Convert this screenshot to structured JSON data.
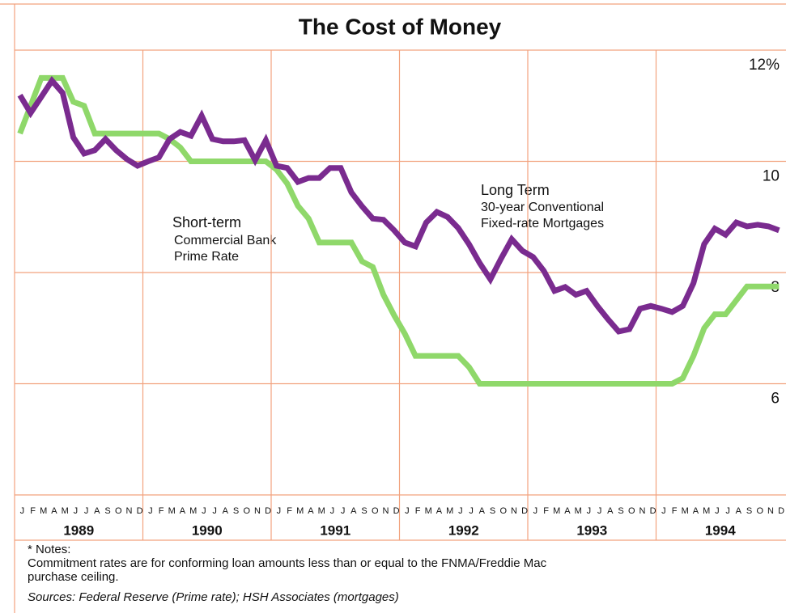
{
  "chart_data": {
    "type": "line",
    "title": "The Cost of Money",
    "categories": [
      "J",
      "F",
      "M",
      "A",
      "M",
      "J",
      "J",
      "A",
      "S",
      "O",
      "N",
      "D",
      "J",
      "F",
      "M",
      "A",
      "M",
      "J",
      "J",
      "A",
      "S",
      "O",
      "N",
      "D",
      "J",
      "F",
      "M",
      "A",
      "M",
      "J",
      "J",
      "A",
      "S",
      "O",
      "N",
      "D",
      "J",
      "F",
      "M",
      "A",
      "M",
      "J",
      "J",
      "A",
      "S",
      "O",
      "N",
      "D",
      "J",
      "F",
      "M",
      "A",
      "M",
      "J",
      "J",
      "A",
      "S",
      "O",
      "N",
      "D",
      "J",
      "F",
      "M",
      "A",
      "M",
      "J",
      "J",
      "A",
      "S",
      "O",
      "N",
      "D"
    ],
    "years": [
      "1989",
      "1990",
      "1991",
      "1992",
      "1993",
      "1994"
    ],
    "ylim": [
      4,
      12
    ],
    "yticks": [
      6,
      8,
      10,
      {
        "value": 12,
        "label": "12%"
      }
    ],
    "grid": true,
    "series": [
      {
        "name": "Long Term",
        "label_lines": [
          "30-year Conventional",
          "Fixed-rate Mortgages"
        ],
        "color": "#7a2b8f",
        "values": [
          11.19,
          10.87,
          11.16,
          11.45,
          11.23,
          10.43,
          10.14,
          10.2,
          10.4,
          10.2,
          10.04,
          9.92,
          10.0,
          10.07,
          10.4,
          10.53,
          10.46,
          10.82,
          10.4,
          10.36,
          10.36,
          10.38,
          10.02,
          10.38,
          9.92,
          9.88,
          9.63,
          9.7,
          9.7,
          9.88,
          9.88,
          9.44,
          9.19,
          8.97,
          8.95,
          8.76,
          8.54,
          8.47,
          8.9,
          9.09,
          9.0,
          8.8,
          8.51,
          8.17,
          7.88,
          8.25,
          8.6,
          8.39,
          8.28,
          8.03,
          7.67,
          7.74,
          7.6,
          7.67,
          7.4,
          7.16,
          6.94,
          6.98,
          7.35,
          7.4,
          7.35,
          7.29,
          7.4,
          7.81,
          8.51,
          8.79,
          8.68,
          8.9,
          8.83,
          8.86,
          8.83,
          8.76
        ]
      },
      {
        "name": "Short-term",
        "label_lines": [
          "Commercial Bank",
          "Prime Rate"
        ],
        "color": "#8fd86a",
        "values": [
          10.5,
          11.0,
          11.5,
          11.5,
          11.5,
          11.07,
          11.0,
          10.5,
          10.5,
          10.5,
          10.5,
          10.5,
          10.5,
          10.5,
          10.4,
          10.25,
          10.0,
          10.0,
          10.0,
          10.0,
          10.0,
          10.0,
          10.0,
          10.0,
          9.85,
          9.6,
          9.2,
          8.97,
          8.54,
          8.54,
          8.54,
          8.54,
          8.2,
          8.1,
          7.6,
          7.23,
          6.9,
          6.5,
          6.5,
          6.5,
          6.5,
          6.5,
          6.3,
          6.0,
          6.0,
          6.0,
          6.0,
          6.0,
          6.0,
          6.0,
          6.0,
          6.0,
          6.0,
          6.0,
          6.0,
          6.0,
          6.0,
          6.0,
          6.0,
          6.0,
          6.0,
          6.0,
          6.1,
          6.5,
          7.0,
          7.25,
          7.25,
          7.5,
          7.75,
          7.75,
          7.75,
          7.75
        ]
      }
    ],
    "notes": [
      "* Notes:",
      "Commitment rates are for conforming loan amounts less than or equal to the FNMA/Freddie Mac",
      "purchase ceiling."
    ],
    "source": "Sources: Federal Reserve (Prime rate); HSH Associates (mortgages)"
  }
}
